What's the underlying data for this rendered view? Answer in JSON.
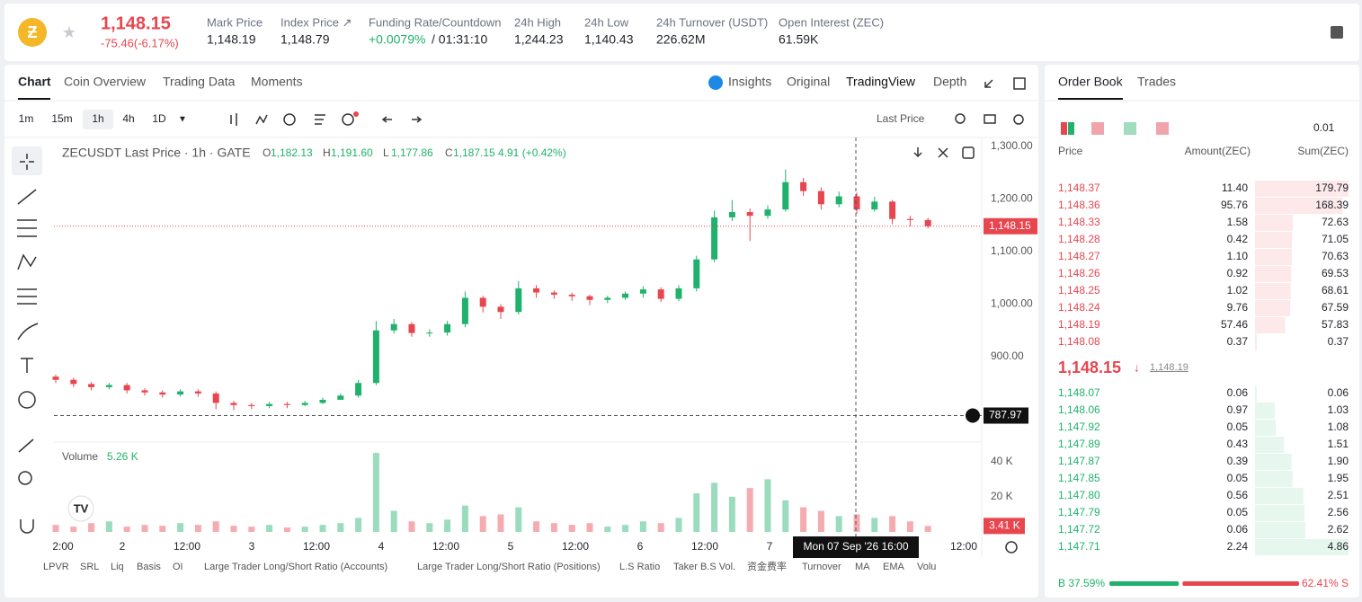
{
  "header": {
    "price": "1,148.15",
    "change": "-75.46(-6.17%)",
    "stats": [
      {
        "label": "Mark Price",
        "value": "1,148.19"
      },
      {
        "label": "Index Price ↗",
        "value": "1,148.79"
      },
      {
        "label": "Funding Rate/Countdown",
        "value": "+0.0079%",
        "extra": "/ 01:31:10"
      },
      {
        "label": "24h High",
        "value": "1,244.23"
      },
      {
        "label": "24h Low",
        "value": "1,140.43"
      },
      {
        "label": "24h Turnover (USDT)",
        "value": "226.62M"
      },
      {
        "label": "Open Interest (ZEC)",
        "value": "61.59K"
      }
    ]
  },
  "tabs": [
    "Chart",
    "Coin Overview",
    "Trading Data",
    "Moments"
  ],
  "views": [
    "Insights",
    "Original",
    "TradingView",
    "Depth"
  ],
  "intervals": [
    "1m",
    "15m",
    "1h",
    "4h",
    "1D"
  ],
  "price_type": "Last Price",
  "chart_data": {
    "type": "candlestick",
    "title": "ZECUSDT Last Price · 1h · GATE",
    "legend": [
      {
        "key": "O",
        "value": "1,182.13"
      },
      {
        "key": "H",
        "value": "1,191.60"
      },
      {
        "key": "L",
        "value": "1,177.86"
      },
      {
        "key": "C",
        "value": "1,187.15"
      }
    ],
    "legend_change": "4.91 (+0.42%)",
    "open": [
      862,
      856,
      848,
      842,
      846,
      836,
      832,
      828,
      834,
      830,
      812,
      808,
      806,
      810,
      808,
      812,
      818,
      826,
      850,
      950,
      962,
      945,
      946,
      962,
      1012,
      995,
      985,
      1030,
      1022,
      1018,
      1015,
      1008,
      1012,
      1020,
      1028,
      1010,
      1030,
      1085,
      1165,
      1175,
      1168,
      1180,
      1232,
      1215,
      1190,
      1205,
      1180,
      1195,
      1162,
      1160
    ],
    "high": [
      866,
      860,
      852,
      850,
      850,
      840,
      836,
      838,
      838,
      834,
      816,
      812,
      814,
      814,
      816,
      822,
      830,
      856,
      968,
      972,
      966,
      952,
      968,
      1024,
      1016,
      1000,
      1044,
      1036,
      1026,
      1022,
      1018,
      1016,
      1024,
      1034,
      1032,
      1036,
      1092,
      1178,
      1198,
      1182,
      1188,
      1256,
      1240,
      1222,
      1214,
      1212,
      1204,
      1198,
      1168,
      1164
    ],
    "low": [
      850,
      842,
      836,
      838,
      830,
      826,
      822,
      824,
      824,
      800,
      798,
      800,
      802,
      802,
      806,
      810,
      820,
      822,
      846,
      944,
      938,
      938,
      940,
      956,
      984,
      972,
      980,
      1012,
      1010,
      1006,
      998,
      1002,
      1008,
      1012,
      1004,
      1006,
      1024,
      1080,
      1158,
      1120,
      1162,
      1176,
      1206,
      1180,
      1184,
      1172,
      1176,
      1152,
      1148,
      1144
    ],
    "close": [
      856,
      848,
      842,
      846,
      836,
      832,
      828,
      834,
      830,
      812,
      808,
      806,
      810,
      808,
      812,
      818,
      826,
      850,
      950,
      962,
      945,
      946,
      962,
      1012,
      995,
      985,
      1030,
      1022,
      1018,
      1015,
      1008,
      1012,
      1020,
      1028,
      1010,
      1030,
      1085,
      1165,
      1175,
      1168,
      1180,
      1232,
      1215,
      1190,
      1205,
      1180,
      1195,
      1162,
      1160,
      1148.15
    ],
    "x_labels": [
      "2:00",
      "2",
      "12:00",
      "3",
      "12:00",
      "4",
      "12:00",
      "5",
      "12:00",
      "6",
      "12:00",
      "7",
      null,
      null,
      "12:00"
    ],
    "ylim": [
      741,
      1305
    ],
    "yticks": [
      {
        "value": 1300,
        "label": "1,300.00"
      },
      {
        "value": 1200,
        "label": "1,200.00"
      },
      {
        "value": 1100,
        "label": "1,100.00"
      },
      {
        "value": 1000,
        "label": "1,000.00"
      },
      {
        "value": 900,
        "label": "900.00"
      }
    ],
    "last_price": {
      "value": 1148.15,
      "label": "1,148.15"
    },
    "crosshair_price": 787.97,
    "crosshair_time": "Mon 07 Sep '26 16:00",
    "up_color": "#20b26c",
    "down_color": "#e8464f",
    "volume": {
      "title": "Volume",
      "legend_value": "5.26 K",
      "ylim": [
        0,
        44000
      ],
      "yticks": [
        {
          "value": 40000,
          "label": "40 K"
        },
        {
          "value": 20000,
          "label": "20 K"
        }
      ],
      "values": [
        4000,
        3000,
        5000,
        6000,
        3000,
        4000,
        3500,
        5000,
        4000,
        6000,
        3500,
        3000,
        4000,
        2500,
        3000,
        4000,
        5000,
        8000,
        45000,
        12000,
        6000,
        5000,
        7000,
        15000,
        9000,
        10000,
        14000,
        6000,
        5000,
        4000,
        5000,
        3000,
        4000,
        6000,
        5000,
        8000,
        22000,
        28000,
        20000,
        25000,
        30000,
        18000,
        14000,
        12000,
        9000,
        10000,
        8000,
        9000,
        6000,
        3410
      ],
      "last": {
        "value": 3410,
        "label": "3.41 K"
      }
    }
  },
  "indicators": [
    "LPVR",
    "SRL",
    "Liq",
    "Basis",
    "OI",
    "Large Trader Long/Short Ratio (Accounts)",
    "Large Trader Long/Short Ratio (Positions)",
    "L.S Ratio",
    "Taker B.S Vol.",
    "资金费率",
    "Turnover",
    "MA",
    "EMA",
    "Volu"
  ],
  "order_book": {
    "tabs": [
      "Order Book",
      "Trades"
    ],
    "precision": "0.01",
    "columns": [
      "Price",
      "Amount(ZEC)",
      "Sum(ZEC)"
    ],
    "asks": [
      [
        "1,148.37",
        "11.40",
        "179.79"
      ],
      [
        "1,148.36",
        "95.76",
        "168.39"
      ],
      [
        "1,148.33",
        "1.58",
        "72.63"
      ],
      [
        "1,148.28",
        "0.42",
        "71.05"
      ],
      [
        "1,148.27",
        "1.10",
        "70.63"
      ],
      [
        "1,148.26",
        "0.92",
        "69.53"
      ],
      [
        "1,148.25",
        "1.02",
        "68.61"
      ],
      [
        "1,148.24",
        "9.76",
        "67.59"
      ],
      [
        "1,148.19",
        "57.46",
        "57.83"
      ],
      [
        "1,148.08",
        "0.37",
        "0.37"
      ]
    ],
    "mid_price": "1,148.15",
    "mark_price": "1,148.19",
    "bids": [
      [
        "1,148.07",
        "0.06",
        "0.06"
      ],
      [
        "1,148.06",
        "0.97",
        "1.03"
      ],
      [
        "1,147.92",
        "0.05",
        "1.08"
      ],
      [
        "1,147.89",
        "0.43",
        "1.51"
      ],
      [
        "1,147.87",
        "0.39",
        "1.90"
      ],
      [
        "1,147.85",
        "0.05",
        "1.95"
      ],
      [
        "1,147.80",
        "0.56",
        "2.51"
      ],
      [
        "1,147.79",
        "0.05",
        "2.56"
      ],
      [
        "1,147.72",
        "0.06",
        "2.62"
      ],
      [
        "1,147.71",
        "2.24",
        "4.86"
      ]
    ],
    "ratio": {
      "buy": 37.59,
      "sell": 62.41,
      "buy_label": "B 37.59%",
      "sell_label": "62.41% S"
    }
  }
}
